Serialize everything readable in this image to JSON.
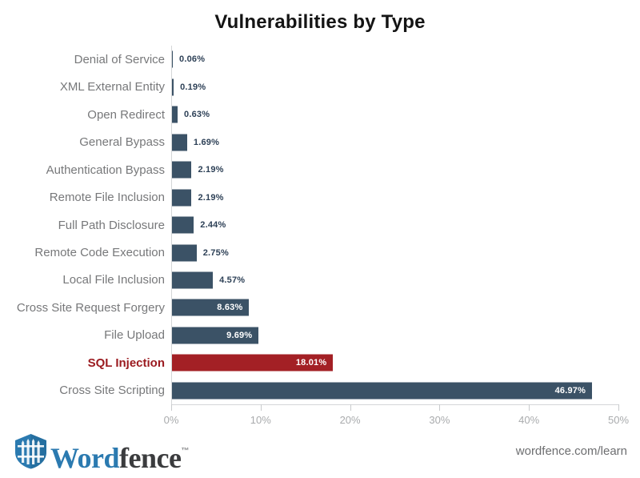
{
  "title": "Vulnerabilities by Type",
  "chart_data": {
    "type": "bar",
    "orientation": "horizontal",
    "title": "Vulnerabilities by Type",
    "xlabel": "",
    "ylabel": "",
    "xlim": [
      0,
      50
    ],
    "x_ticks": [
      "0%",
      "10%",
      "20%",
      "30%",
      "40%",
      "50%"
    ],
    "x_tick_values": [
      0,
      10,
      20,
      30,
      40,
      50
    ],
    "grid": false,
    "legend": "none",
    "categories": [
      "Denial of Service",
      "XML External Entity",
      "Open Redirect",
      "General Bypass",
      "Authentication Bypass",
      "Remote File Inclusion",
      "Full Path Disclosure",
      "Remote Code Execution",
      "Local File Inclusion",
      "Cross Site Request Forgery",
      "File Upload",
      "SQL Injection",
      "Cross Site Scripting"
    ],
    "values": [
      0.06,
      0.19,
      0.63,
      1.69,
      2.19,
      2.19,
      2.44,
      2.75,
      4.57,
      8.63,
      9.69,
      18.01,
      46.97
    ],
    "value_labels": [
      "0.06%",
      "0.19%",
      "0.63%",
      "1.69%",
      "2.19%",
      "2.19%",
      "2.44%",
      "2.75%",
      "4.57%",
      "8.63%",
      "9.69%",
      "18.01%",
      "46.97%"
    ],
    "highlight_index": 11,
    "bar_color": "#3b5266",
    "highlight_color": "#a32025",
    "highlight_label_color": "#9b1b20"
  },
  "footer": {
    "logo_icon": "shield-fence-icon",
    "logo_word": "Word",
    "logo_fence": "fence",
    "trademark": "™",
    "link": "wordfence.com/learn"
  },
  "colors": {
    "background": "#ffffff",
    "title_text": "#141414",
    "category_label": "#77787a",
    "value_label_dark": "#2e4157",
    "value_label_light": "#ffffff",
    "axis_line": "#d4d6d8",
    "tick_label": "#a9abad",
    "logo_blue": "#2b7ab0",
    "logo_dark": "#3b3c3e"
  }
}
